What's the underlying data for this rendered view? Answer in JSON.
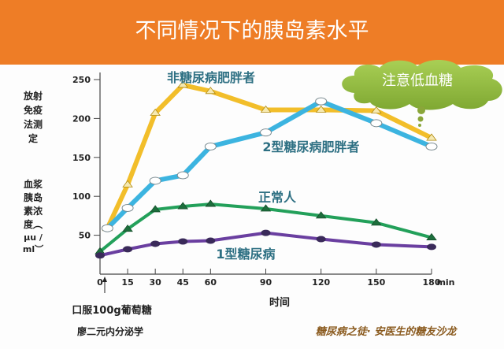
{
  "header": {
    "title": "不同情况下的胰岛素水平",
    "background": "#ee7d26"
  },
  "callout": {
    "text": "注意低血糖",
    "color": "#8fba3c"
  },
  "left_labels": {
    "method": [
      "放射",
      "免疫",
      "法测",
      "定"
    ],
    "quantity": [
      "血浆",
      "胰岛",
      "素浓",
      "度︵",
      "μu /",
      "ml︶"
    ]
  },
  "annotation_dose": "口服100g葡萄糖",
  "source": "廖二元内分泌学",
  "watermark": "糖尿病之徒· 安医生的糖友沙龙",
  "chart_data": {
    "type": "line",
    "title": "不同情况下的胰岛素水平",
    "xlabel": "时间",
    "x_unit": "min",
    "x": [
      0,
      15,
      30,
      45,
      60,
      90,
      120,
      150,
      180
    ],
    "x_ticks": [
      "0",
      "15",
      "30",
      "45",
      "60",
      "90",
      "120",
      "150",
      "180"
    ],
    "y_ticks": [
      "50",
      "100",
      "150",
      "200",
      "250"
    ],
    "ylim": [
      0,
      260
    ],
    "xlim": [
      0,
      180
    ],
    "grid": false,
    "series": [
      {
        "name": "非糖尿病肥胖者",
        "color": "#f2be2a",
        "marker": "triangle",
        "values": [
          59,
          115,
          207,
          243,
          235,
          211,
          211,
          210,
          175
        ]
      },
      {
        "name": "2型糖尿病肥胖者",
        "color": "#3cb4e0",
        "marker": "open-ellipse",
        "values": [
          59,
          85,
          120,
          127,
          164,
          182,
          222,
          194,
          164
        ]
      },
      {
        "name": "正常人",
        "color": "#23a05a",
        "marker": "triangle",
        "values": [
          29,
          58,
          83,
          87,
          90,
          84,
          75,
          66,
          47
        ]
      },
      {
        "name": "1型糖尿病",
        "color": "#6a3fa0",
        "marker": "filled-ellipse",
        "values": [
          24,
          32,
          39,
          42,
          43,
          53,
          45,
          38,
          35
        ]
      }
    ],
    "label_color": "#2e7083"
  }
}
